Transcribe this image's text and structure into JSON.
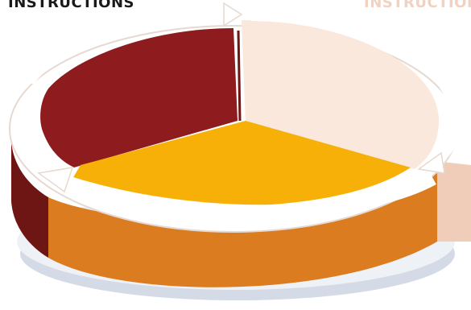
{
  "labels": {
    "left": "INSTRUCTIONS",
    "right": "INSTRUCTIONS"
  },
  "segments": [
    {
      "name": "back-left",
      "top_color": "#8e1c1e",
      "side_color": "#6e1614"
    },
    {
      "name": "back-right",
      "top_color": "#fbe8dc",
      "side_color": "#f0cdb8"
    },
    {
      "name": "front",
      "top_color": "#f7b007",
      "side_color": "#da7c1f"
    }
  ],
  "colors": {
    "ring": "#ffffff",
    "ring_edge": "#e6d9d1",
    "shadow": "#d4dbe6"
  }
}
